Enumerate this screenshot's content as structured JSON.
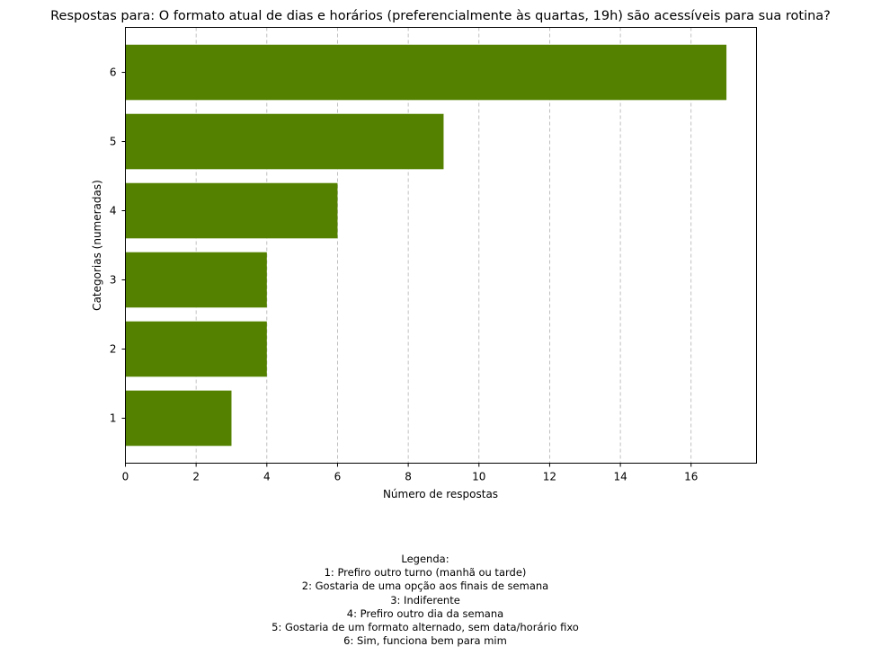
{
  "chart_data": {
    "type": "bar",
    "orientation": "horizontal",
    "title": "Respostas para: O formato atual de dias e horários (preferencialmente às quartas, 19h) são acessíveis para sua rotina?",
    "xlabel": "Número de respostas",
    "ylabel": "Categorias (numeradas)",
    "categories": [
      "1",
      "2",
      "3",
      "4",
      "5",
      "6"
    ],
    "values": [
      3,
      4,
      4,
      6,
      9,
      17
    ],
    "xlim": [
      0,
      17.85
    ],
    "xticks": [
      0,
      2,
      4,
      6,
      8,
      10,
      12,
      14,
      16
    ],
    "grid": "x-dashed",
    "bar_color": "#548200",
    "grid_color": "#b0b0b0"
  },
  "legend": {
    "heading": "Legenda:",
    "items": [
      "1: Prefiro outro turno (manhã ou tarde)",
      "2: Gostaria de uma opção aos finais de semana",
      "3: Indiferente",
      "4: Prefiro outro dia da semana",
      "5: Gostaria de um formato alternado, sem data/horário fixo",
      "6: Sim, funciona bem para mim"
    ]
  }
}
